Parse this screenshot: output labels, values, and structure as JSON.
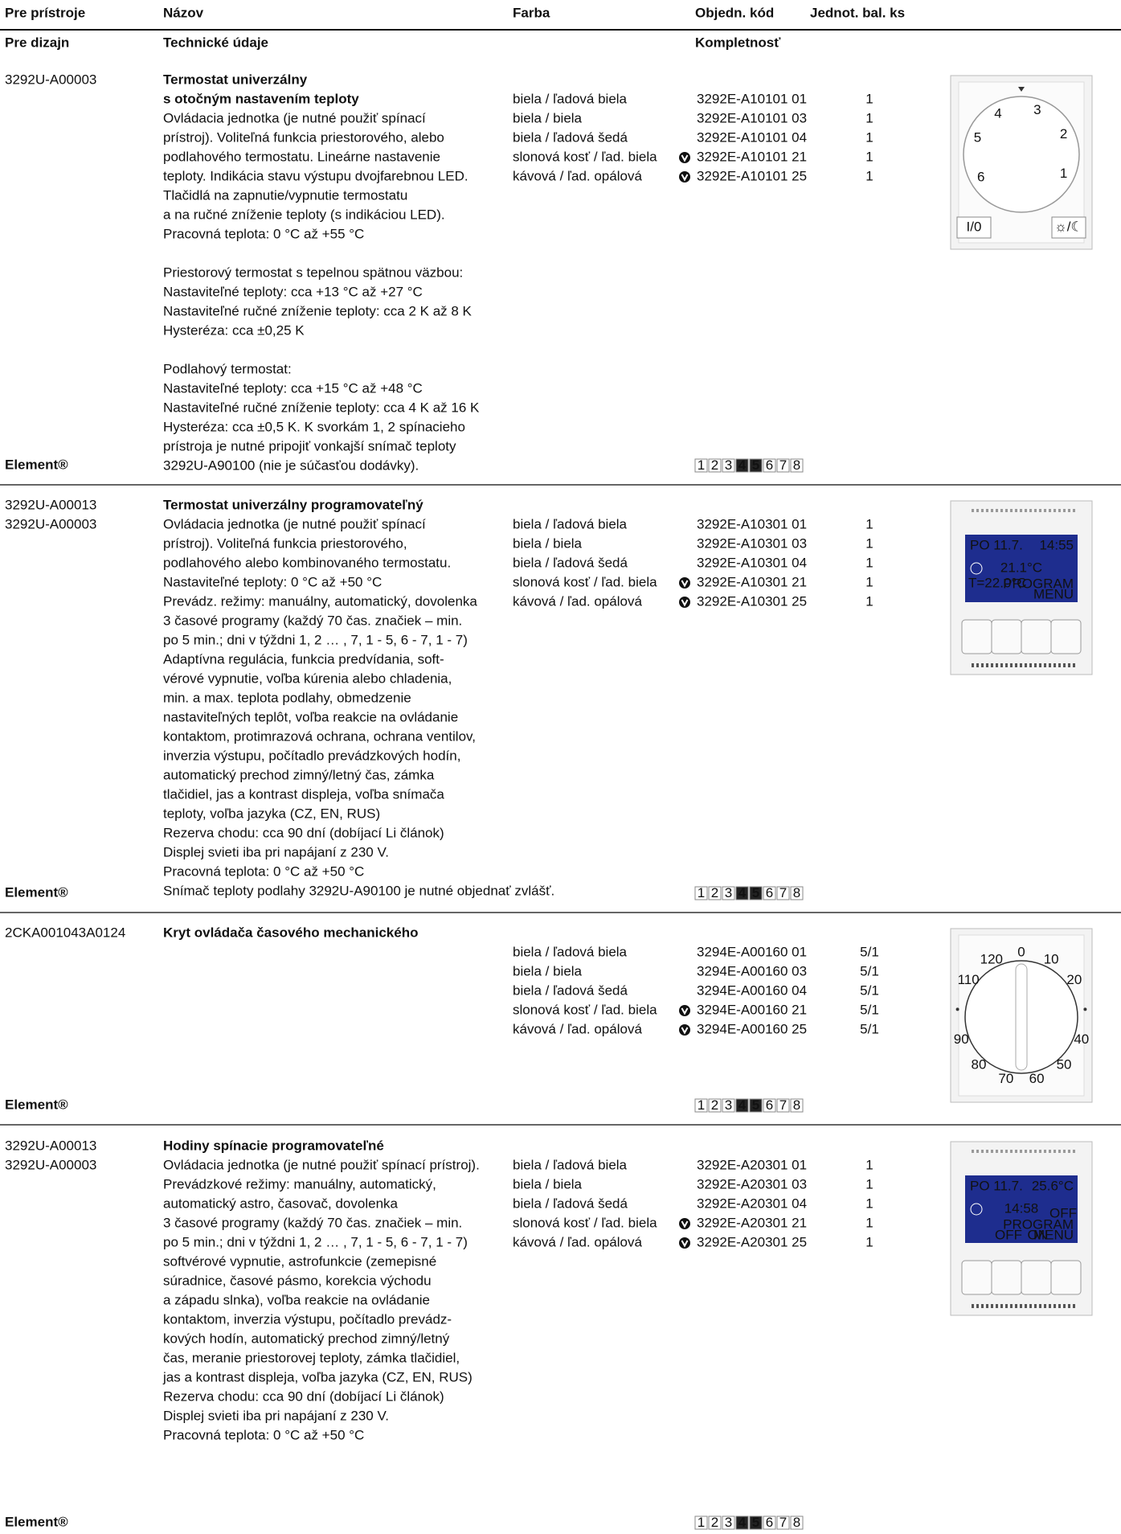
{
  "header": {
    "columns": [
      "Pre prístroje",
      "Názov",
      "Farba",
      "Objedn. kód",
      "Jednot. bal. ks"
    ],
    "subcolumns": [
      "Pre dizajn",
      "Technické údaje",
      "Kompletnosť"
    ]
  },
  "sections": [
    {
      "codes": [
        "3292U-A00003"
      ],
      "title": [
        "Termostat univerzálny",
        "s otočným nastavením teploty"
      ],
      "description": [
        [
          "Ovládacia jednotka (je nutné použiť spínací",
          "prístroj). Voliteľná funkcia priestorového, alebo",
          "podlahového termostatu. Lineárne nastavenie",
          "teploty. Indikácia stavu výstupu dvojfarebnou LED.",
          "Tlačidlá na zapnutie/vypnutie termostatu",
          "a na ručné zníženie teploty (s indikáciou LED).",
          "Pracovná teplota: 0 °C až +55 °C"
        ],
        [
          "Priestorový termostat s tepelnou spätnou väzbou:",
          "Nastaviteľné teploty: cca +13 °C až +27 °C",
          "Nastaviteľné ručné zníženie teploty: cca 2 K až 8 K",
          "Hysteréza: cca ±0,25 K"
        ],
        [
          "Podlahový termostat:",
          "Nastaviteľné teploty: cca +15 °C až +48 °C",
          "Nastaviteľné ručné zníženie teploty: cca 4 K až 16 K",
          "Hysteréza: cca ±0,5 K. K svorkám 1, 2 spínacieho",
          "prístroja je nutné pripojiť vonkajší snímač teploty",
          "3292U-A90100 (nie je súčasťou dodávky)."
        ]
      ],
      "variants": [
        {
          "color": "biela / ľadová biela",
          "code": "3292E-A10101 01",
          "quantity": 1,
          "mark": false
        },
        {
          "color": "biela / biela",
          "code": "3292E-A10101 03",
          "quantity": 1,
          "mark": false
        },
        {
          "color": "biela / ľadová šedá",
          "code": "3292E-A10101 04",
          "quantity": 1,
          "mark": false
        },
        {
          "color": "slonová kosť / ľad. biela",
          "code": "3292E-A10101 21",
          "quantity": 1,
          "mark": true
        },
        {
          "color": "kávová / ľad. opálová",
          "code": "3292E-A10101 25",
          "quantity": 1,
          "mark": true
        }
      ],
      "brand": "Element®",
      "scale": [
        "1",
        "2",
        "3",
        "4",
        "5",
        "6",
        "7",
        "8"
      ],
      "scale_active": [
        3,
        4
      ],
      "device": {
        "kind": "thermostat-dial",
        "labels": [
          "6",
          "5",
          "4",
          "3",
          "2",
          "1"
        ],
        "buttons": [
          "I/0",
          "☼/☾"
        ]
      }
    },
    {
      "codes": [
        "3292U-A00013",
        "3292U-A00003"
      ],
      "title": [
        "Termostat univerzálny programovateľný"
      ],
      "description": [
        [
          "Ovládacia jednotka (je nutné použiť spínací",
          "prístroj). Voliteľná funkcia priestorového,",
          "podlahového alebo kombinovaného termostatu.",
          "Nastaviteľné teploty: 0 °C až +50 °C",
          "Prevádz. režimy: manuálny, automatický, dovolenka",
          "3 časové programy (každý 70 čas. značiek – min.",
          "po 5 min.; dni v týždni 1, 2 … , 7, 1 - 5, 6 - 7, 1 - 7)",
          "Adaptívna regulácia, funkcia predvídania, soft-",
          "vérové vypnutie, voľba kúrenia alebo chladenia,",
          "min. a max. teplota podlahy, obmedzenie",
          "nastaviteľných teplôt, voľba reakcie na ovládanie",
          "kontaktom, protimrazová ochrana, ochrana ventilov,",
          "inverzia výstupu, počítadlo prevádzkových hodín,",
          "automatický prechod zimný/letný čas, zámka",
          "tlačidiel, jas a kontrast displeja, voľba snímača",
          "teploty, voľba jazyka (CZ, EN, RUS)",
          "Rezerva chodu: cca 90 dní (dobíjací Li článok)",
          "Displej svieti iba pri napájaní z 230 V.",
          "Pracovná teplota: 0 °C až +50 °C",
          "Snímač teploty podlahy 3292U-A90100 je nutné objednať zvlášť."
        ]
      ],
      "variants": [
        {
          "color": "biela / ľadová biela",
          "code": "3292E-A10301 01",
          "quantity": 1,
          "mark": false
        },
        {
          "color": "biela / biela",
          "code": "3292E-A10301 03",
          "quantity": 1,
          "mark": false
        },
        {
          "color": "biela / ľadová šedá",
          "code": "3292E-A10301 04",
          "quantity": 1,
          "mark": false
        },
        {
          "color": "slonová kosť / ľad. biela",
          "code": "3292E-A10301 21",
          "quantity": 1,
          "mark": true
        },
        {
          "color": "kávová / ľad. opálová",
          "code": "3292E-A10301 25",
          "quantity": 1,
          "mark": true
        }
      ],
      "brand": "Element®",
      "scale": [
        "1",
        "2",
        "3",
        "4",
        "5",
        "6",
        "7",
        "8"
      ],
      "scale_active": [
        3,
        4
      ],
      "device": {
        "kind": "display",
        "date": "PO 11.7.",
        "right": "14:55",
        "big": "21.1°C",
        "left": "T=22.0°C",
        "program": "PROGRAM",
        "keys": [
          "MENU"
        ]
      }
    },
    {
      "codes": [
        "2CKA001043A0124"
      ],
      "title": [
        "Kryt ovládača časového mechanického"
      ],
      "description": [],
      "variants": [
        {
          "color": "biela / ľadová biela",
          "code": "3294E-A00160 01",
          "quantity": "5/1",
          "mark": false
        },
        {
          "color": "biela / biela",
          "code": "3294E-A00160 03",
          "quantity": "5/1",
          "mark": false
        },
        {
          "color": "biela / ľadová šedá",
          "code": "3294E-A00160 04",
          "quantity": "5/1",
          "mark": false
        },
        {
          "color": "slonová kosť / ľad. biela",
          "code": "3294E-A00160 21",
          "quantity": "5/1",
          "mark": true
        },
        {
          "color": "kávová / ľad. opálová",
          "code": "3294E-A00160 25",
          "quantity": "5/1",
          "mark": true
        }
      ],
      "brand": "Element®",
      "scale": [
        "1",
        "2",
        "3",
        "4",
        "5",
        "6",
        "7",
        "8"
      ],
      "scale_active": [
        3,
        4
      ],
      "device": {
        "kind": "timer-dial",
        "labels": [
          "0",
          "10",
          "20",
          null,
          "40",
          "50",
          "60",
          "70",
          "80",
          "90",
          null,
          "110",
          "120"
        ]
      }
    },
    {
      "codes": [
        "3292U-A00013",
        "3292U-A00003"
      ],
      "title": [
        "Hodiny spínacie programovateľné"
      ],
      "description": [
        [
          "Ovládacia jednotka (je nutné použiť spínací prístroj).",
          "Prevádzkové režimy: manuálny, automatický,",
          "automatický astro, časovač, dovolenka",
          "3 časové programy (každý 70 čas. značiek – min.",
          "po 5 min.; dni v týždni 1, 2 … , 7, 1 - 5, 6 - 7, 1 - 7)",
          "softvérové vypnutie, astrofunkcie (zemepisné",
          "súradnice, časové pásmo, korekcia východu",
          "a západu slnka), voľba reakcie na ovládanie",
          "kontaktom, inverzia výstupu, počítadlo prevádz-",
          "kových hodín, automatický prechod zimný/letný",
          "čas, meranie priestorovej teploty, zámka tlačidiel,",
          "jas a kontrast displeja, voľba jazyka (CZ, EN, RUS)",
          "Rezerva chodu: cca 90 dní (dobíjací Li článok)",
          "Displej svieti iba pri napájaní z 230 V.",
          "Pracovná teplota: 0 °C až +50 °C"
        ]
      ],
      "variants": [
        {
          "color": "biela / ľadová biela",
          "code": "3292E-A20301 01",
          "quantity": 1,
          "mark": false
        },
        {
          "color": "biela / biela",
          "code": "3292E-A20301 03",
          "quantity": 1,
          "mark": false
        },
        {
          "color": "biela / ľadová šedá",
          "code": "3292E-A20301 04",
          "quantity": 1,
          "mark": false
        },
        {
          "color": "slonová kosť / ľad. biela",
          "code": "3292E-A20301 21",
          "quantity": 1,
          "mark": true
        },
        {
          "color": "kávová / ľad. opálová",
          "code": "3292E-A20301 25",
          "quantity": 1,
          "mark": true
        }
      ],
      "brand": "Element®",
      "scale": [
        "1",
        "2",
        "3",
        "4",
        "5",
        "6",
        "7",
        "8"
      ],
      "scale_active": [
        3,
        4
      ],
      "device": {
        "kind": "display",
        "date": "PO 11.7.",
        "right": "25.6°C",
        "big": "14:58",
        "status": "OFF",
        "program": "PROGRAM",
        "keys": [
          "OFF",
          "ON",
          "MENU"
        ]
      }
    }
  ]
}
